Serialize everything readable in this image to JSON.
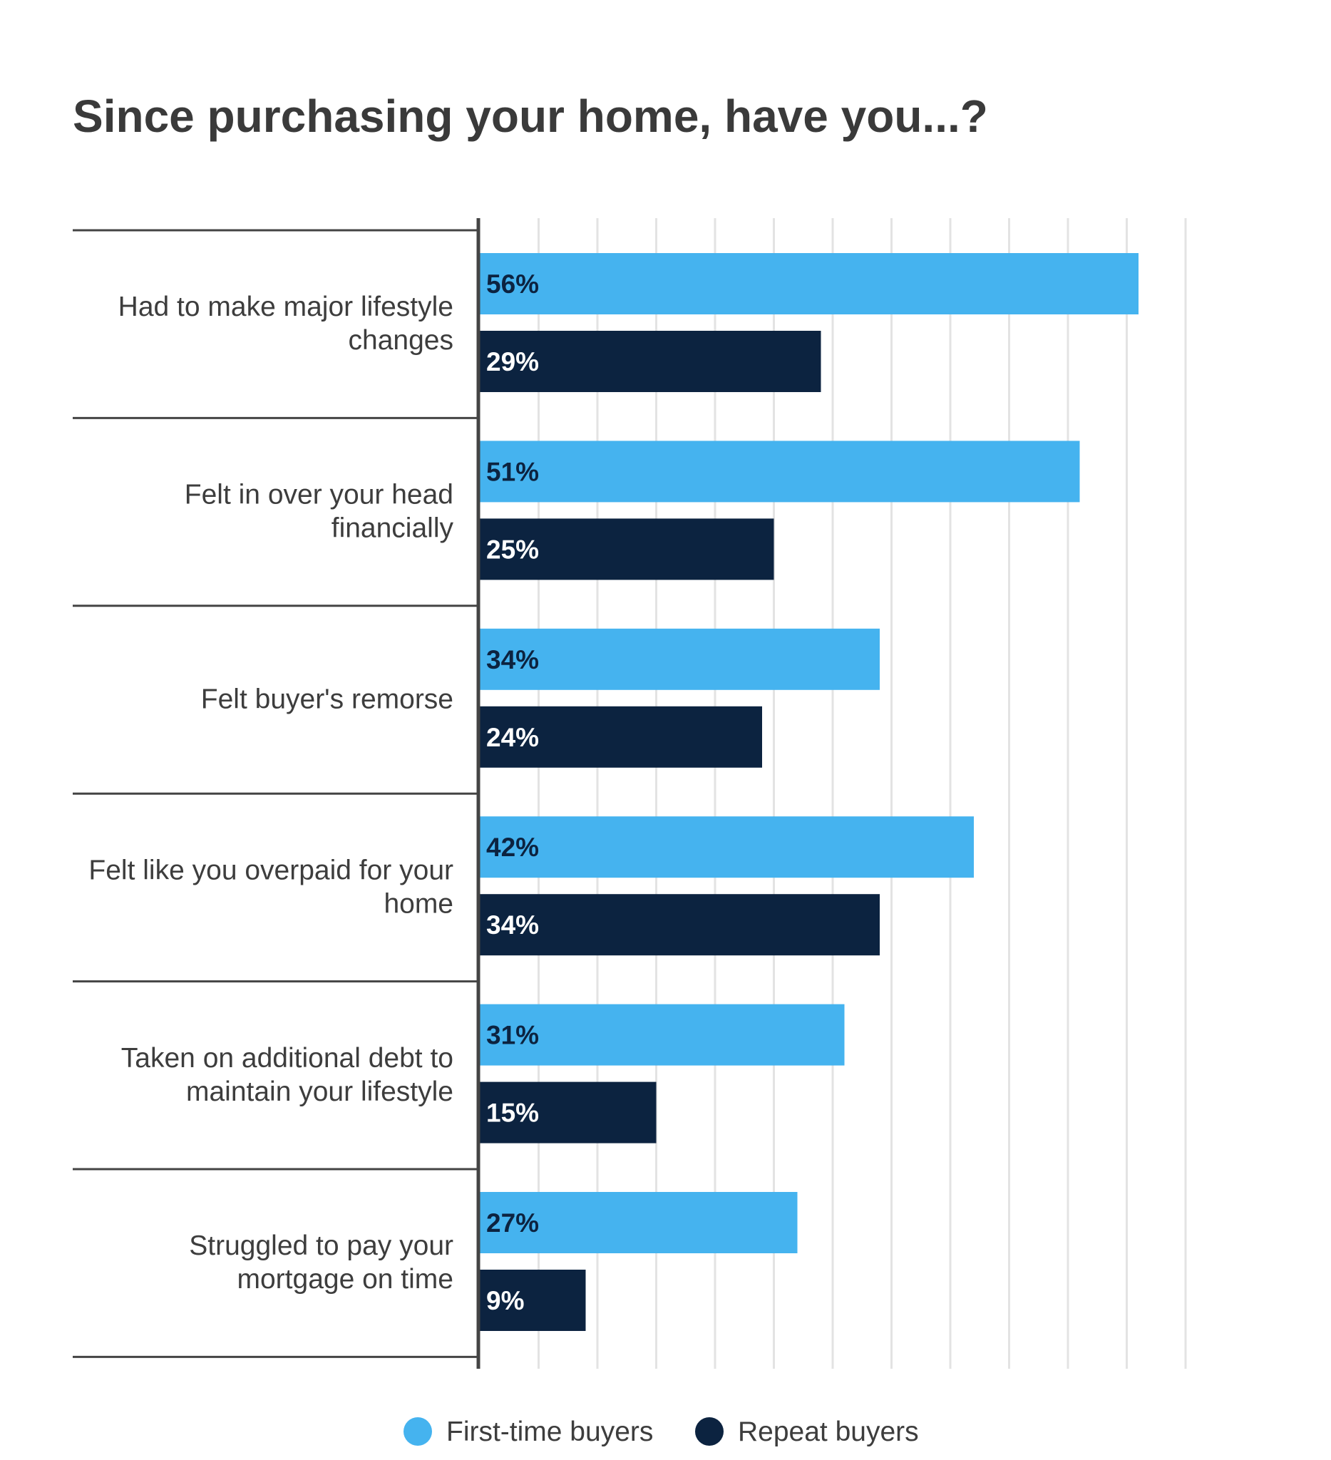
{
  "chart_data": {
    "type": "bar",
    "orientation": "horizontal",
    "title": "Since purchasing your home, have you...?",
    "categories": [
      [
        "Had to make major lifestyle",
        "changes"
      ],
      [
        "Felt in over your head",
        "financially"
      ],
      [
        "Felt buyer's remorse"
      ],
      [
        "Felt like you overpaid for your",
        "home"
      ],
      [
        "Taken on additional debt to",
        "maintain your lifestyle"
      ],
      [
        "Struggled to pay your",
        "mortgage on time"
      ]
    ],
    "series": [
      {
        "name": "First-time buyers",
        "color": "#45b3ef",
        "label_color": "#0c2340",
        "values": [
          56,
          51,
          34,
          42,
          31,
          27
        ],
        "labels": [
          "56%",
          "51%",
          "34%",
          "42%",
          "31%",
          "27%"
        ]
      },
      {
        "name": "Repeat buyers",
        "color": "#0c2340",
        "label_color": "#ffffff",
        "values": [
          29,
          25,
          24,
          34,
          15,
          9
        ],
        "labels": [
          "29%",
          "25%",
          "24%",
          "34%",
          "15%",
          "9%"
        ]
      }
    ],
    "xlim": [
      0,
      60
    ],
    "grid": true,
    "legend_position": "bottom-center",
    "xlabel": "",
    "ylabel": ""
  }
}
